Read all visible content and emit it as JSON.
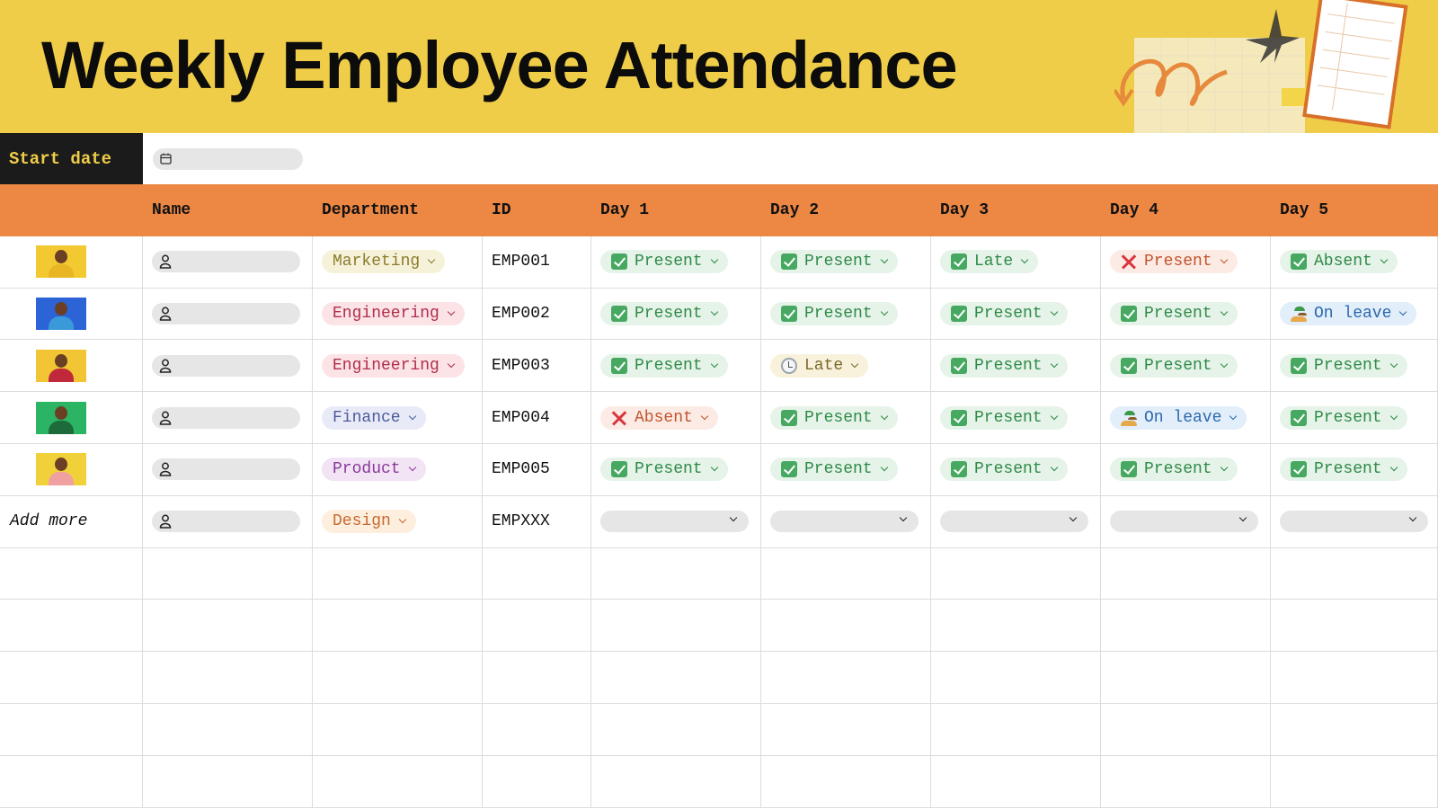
{
  "header": {
    "title": "Weekly Employee Attendance"
  },
  "start_date": {
    "label": "Start date"
  },
  "table": {
    "columns": [
      "Name",
      "Department",
      "ID",
      "Day 1",
      "Day 2",
      "Day 3",
      "Day 4",
      "Day 5"
    ],
    "rows": [
      {
        "department": "Marketing",
        "id": "EMP001",
        "days": [
          "Present",
          "Present",
          "Late",
          "Present",
          "Absent"
        ]
      },
      {
        "department": "Engineering",
        "id": "EMP002",
        "days": [
          "Present",
          "Present",
          "Present",
          "Present",
          "On leave"
        ]
      },
      {
        "department": "Engineering",
        "id": "EMP003",
        "days": [
          "Present",
          "Late",
          "Present",
          "Present",
          "Present"
        ]
      },
      {
        "department": "Finance",
        "id": "EMP004",
        "days": [
          "Absent",
          "Present",
          "Present",
          "On leave",
          "Present"
        ]
      },
      {
        "department": "Product",
        "id": "EMP005",
        "days": [
          "Present",
          "Present",
          "Present",
          "Present",
          "Present"
        ]
      }
    ],
    "add_row": {
      "label": "Add more",
      "department": "Design",
      "id": "EMPXXX"
    }
  }
}
